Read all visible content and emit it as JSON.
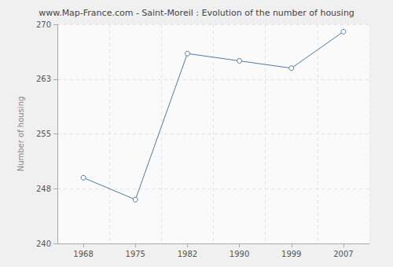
{
  "chart_data": {
    "type": "line",
    "title": "www.Map-France.com - Saint-Moreil : Evolution of the number of housing",
    "ylabel": "Number of housing",
    "categories": [
      "1968",
      "1975",
      "1982",
      "1990",
      "1999",
      "2007"
    ],
    "values": [
      249,
      246,
      266,
      265,
      264,
      269
    ],
    "color": "#4e7aa3",
    "marker": "circle",
    "ylim": [
      240,
      270
    ],
    "yticks": [
      240,
      {
        "value": 247.5,
        "label": "248"
      },
      255,
      {
        "value": 262.5,
        "label": "263"
      },
      270
    ],
    "grid": true
  }
}
